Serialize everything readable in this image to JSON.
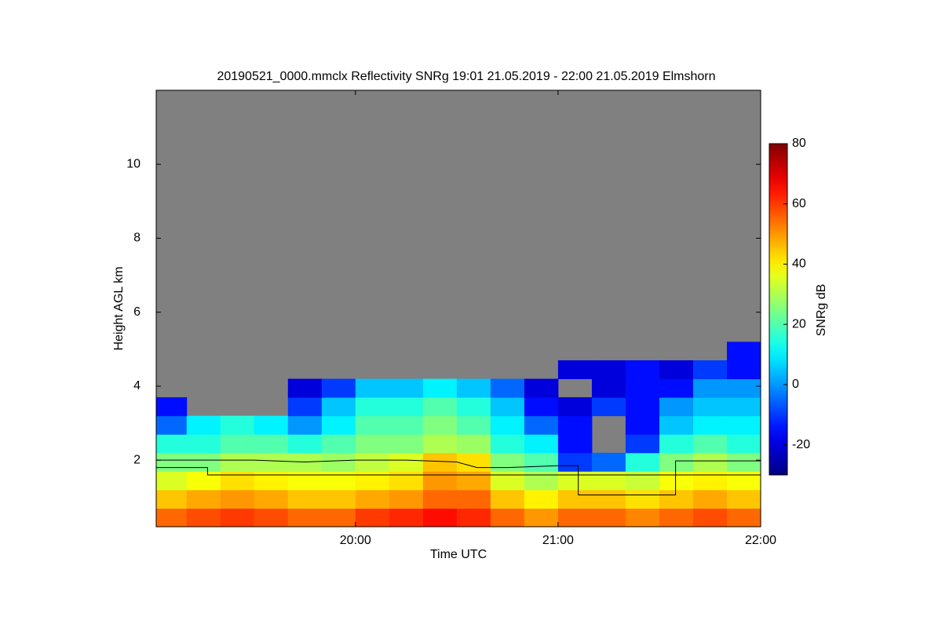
{
  "chart_data": {
    "type": "heatmap",
    "title": "20190521_0000.mmclx Reflectivity SNRg   19:01 21.05.2019 - 22:00 21.05.2019 Elmshorn",
    "x_label": "Time UTC",
    "y_label": "Height AGL km",
    "colorbar_label": "SNRg dB",
    "colormap": "jet",
    "background": "#808080",
    "xlim": [
      19.0167,
      22.0
    ],
    "xticks": [
      {
        "value": 20,
        "label": "20:00"
      },
      {
        "value": 21,
        "label": "21:00"
      },
      {
        "value": 22,
        "label": "22:00"
      }
    ],
    "ylim": [
      0.2,
      12
    ],
    "yticks": [
      2,
      4,
      6,
      8,
      10
    ],
    "clim": [
      -30,
      80
    ],
    "cticks": [
      -20,
      0,
      20,
      40,
      60,
      80
    ],
    "x_edges": [
      19.0167,
      19.1667,
      19.3333,
      19.5,
      19.6667,
      19.8333,
      20.0,
      20.1667,
      20.3333,
      20.5,
      20.6667,
      20.8333,
      21.0,
      21.1667,
      21.3333,
      21.5,
      21.6667,
      21.8333,
      22.0
    ],
    "y_edges": [
      0.2,
      0.7,
      1.2,
      1.7,
      2.2,
      2.7,
      3.2,
      3.7,
      4.2,
      4.7,
      5.2
    ],
    "z": [
      [
        55,
        58,
        60,
        58,
        55,
        55,
        60,
        62,
        65,
        62,
        55,
        50,
        55,
        55,
        52,
        55,
        58,
        55
      ],
      [
        45,
        48,
        50,
        48,
        45,
        45,
        48,
        50,
        55,
        55,
        45,
        40,
        45,
        45,
        42,
        45,
        48,
        45
      ],
      [
        35,
        38,
        42,
        40,
        38,
        38,
        40,
        42,
        50,
        48,
        35,
        30,
        35,
        35,
        33,
        38,
        40,
        38
      ],
      [
        25,
        25,
        30,
        30,
        30,
        28,
        32,
        35,
        45,
        42,
        25,
        20,
        -10,
        -5,
        15,
        25,
        30,
        25
      ],
      [
        15,
        15,
        20,
        20,
        15,
        20,
        25,
        25,
        30,
        28,
        15,
        10,
        -15,
        null,
        -10,
        15,
        20,
        15
      ],
      [
        -5,
        10,
        15,
        10,
        0,
        10,
        20,
        20,
        25,
        20,
        10,
        -5,
        -15,
        null,
        -15,
        5,
        10,
        10
      ],
      [
        -15,
        null,
        null,
        null,
        -10,
        5,
        15,
        15,
        20,
        15,
        5,
        -15,
        -20,
        -10,
        -15,
        0,
        5,
        5
      ],
      [
        null,
        null,
        null,
        null,
        -20,
        -10,
        5,
        5,
        10,
        5,
        -5,
        -20,
        null,
        -20,
        -15,
        -15,
        0,
        0
      ],
      [
        null,
        null,
        null,
        null,
        null,
        null,
        null,
        null,
        null,
        null,
        null,
        null,
        -20,
        -20,
        -15,
        -20,
        -10,
        -15
      ],
      [
        null,
        null,
        null,
        null,
        null,
        null,
        null,
        null,
        null,
        null,
        null,
        null,
        null,
        null,
        null,
        null,
        null,
        -15
      ]
    ],
    "lines": [
      {
        "color": "#000000",
        "x": [
          19.0167,
          19.5,
          19.75,
          20.0,
          20.25,
          20.5,
          20.6,
          20.75,
          21.0,
          21.1,
          21.1,
          21.58,
          21.58,
          22.0
        ],
        "values": [
          2.0,
          2.0,
          1.95,
          2.0,
          2.0,
          1.95,
          1.8,
          1.8,
          1.85,
          1.85,
          1.06,
          1.06,
          1.98,
          1.98
        ]
      },
      {
        "color": "#000000",
        "x": [
          19.0167,
          19.27,
          19.27,
          22.0
        ],
        "values": [
          1.8,
          1.8,
          1.6,
          1.6
        ]
      }
    ]
  }
}
